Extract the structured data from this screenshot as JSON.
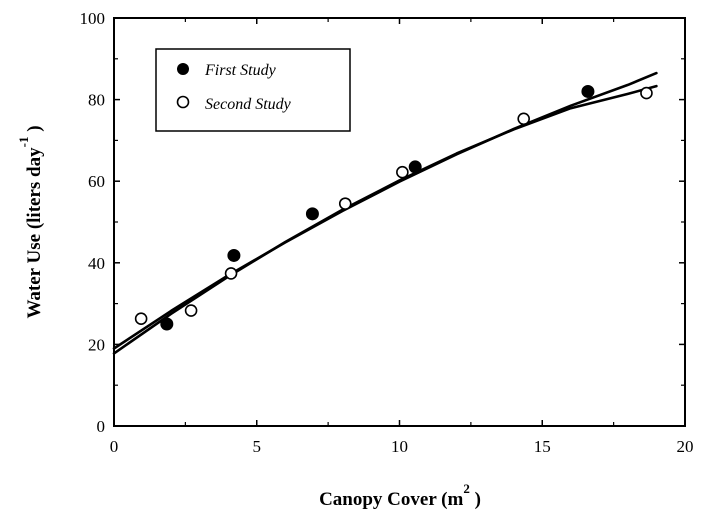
{
  "chart_data": {
    "type": "scatter",
    "title": "",
    "xlabel": "Canopy Cover  (m",
    "xlabel_sup": "2",
    "xlabel_close": " )",
    "ylabel": "Water Use  (liters day",
    "ylabel_sup": "-1",
    "ylabel_close": " )",
    "xlim": [
      0,
      20
    ],
    "ylim": [
      0,
      100
    ],
    "x_ticks": [
      0,
      5,
      10,
      15,
      20
    ],
    "y_ticks": [
      0,
      20,
      40,
      60,
      80,
      100
    ],
    "x_tick_labels": [
      "0",
      "5",
      "10",
      "15",
      "20"
    ],
    "y_tick_labels": [
      "0",
      "20",
      "40",
      "60",
      "80",
      "100"
    ],
    "grid": false,
    "legend_position": "top-left",
    "series": [
      {
        "name": "First Study",
        "marker": "filled-circle",
        "color": "#000000",
        "points": [
          {
            "x": 1.85,
            "y": 25.0
          },
          {
            "x": 4.2,
            "y": 41.8
          },
          {
            "x": 6.95,
            "y": 52.0
          },
          {
            "x": 10.55,
            "y": 63.5
          },
          {
            "x": 16.6,
            "y": 82.0
          }
        ],
        "fit_line": [
          {
            "x": 0,
            "y": 19.0
          },
          {
            "x": 2,
            "y": 28.2
          },
          {
            "x": 4,
            "y": 36.9
          },
          {
            "x": 6,
            "y": 45.0
          },
          {
            "x": 8,
            "y": 52.7
          },
          {
            "x": 10,
            "y": 59.9
          },
          {
            "x": 12,
            "y": 66.6
          },
          {
            "x": 14,
            "y": 72.8
          },
          {
            "x": 16,
            "y": 78.5
          },
          {
            "x": 18,
            "y": 83.6
          },
          {
            "x": 19,
            "y": 86.5
          }
        ]
      },
      {
        "name": "Second Study",
        "marker": "open-circle",
        "color": "#000000",
        "points": [
          {
            "x": 0.95,
            "y": 26.3
          },
          {
            "x": 2.7,
            "y": 28.3
          },
          {
            "x": 4.1,
            "y": 37.4
          },
          {
            "x": 8.1,
            "y": 54.5
          },
          {
            "x": 10.1,
            "y": 62.2
          },
          {
            "x": 14.35,
            "y": 75.3
          },
          {
            "x": 18.65,
            "y": 81.6
          }
        ],
        "fit_line": [
          {
            "x": 0,
            "y": 17.8
          },
          {
            "x": 2,
            "y": 27.5
          },
          {
            "x": 4,
            "y": 36.6
          },
          {
            "x": 6,
            "y": 45.1
          },
          {
            "x": 8,
            "y": 53.0
          },
          {
            "x": 10,
            "y": 60.2
          },
          {
            "x": 12,
            "y": 66.8
          },
          {
            "x": 14,
            "y": 72.7
          },
          {
            "x": 16,
            "y": 77.9
          },
          {
            "x": 18,
            "y": 81.4
          },
          {
            "x": 19,
            "y": 83.3
          }
        ]
      }
    ]
  }
}
